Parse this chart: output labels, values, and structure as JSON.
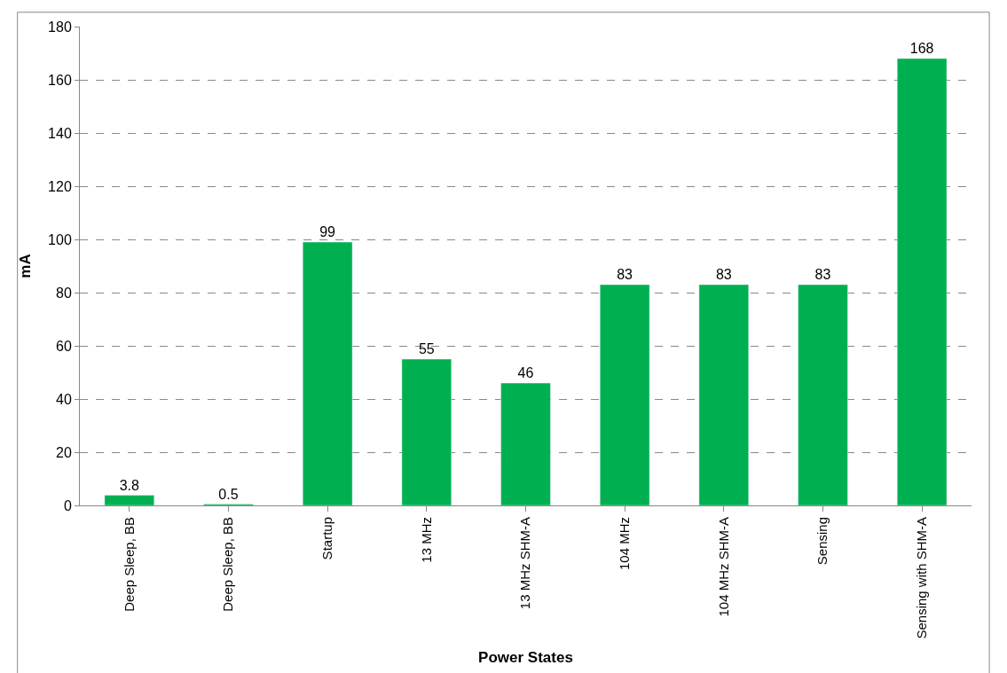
{
  "chart_data": {
    "type": "bar",
    "xlabel": "Power States",
    "ylabel": "mA",
    "categories": [
      "Deep Sleep, BB",
      "Deep Sleep, BB",
      "Startup",
      "13 MHz",
      "13 MHz SHM-A",
      "104 MHz",
      "104 MHz SHM-A",
      "Sensing",
      "Sensing with SHM-A"
    ],
    "values": [
      3.8,
      0.5,
      99,
      55,
      46,
      83,
      83,
      83,
      168
    ],
    "color": "#00b050",
    "ylim": [
      0,
      180
    ],
    "yticks": [
      0,
      20,
      40,
      60,
      80,
      100,
      120,
      140,
      160,
      180
    ],
    "grid": "y",
    "data_labels": true,
    "legend": false
  }
}
